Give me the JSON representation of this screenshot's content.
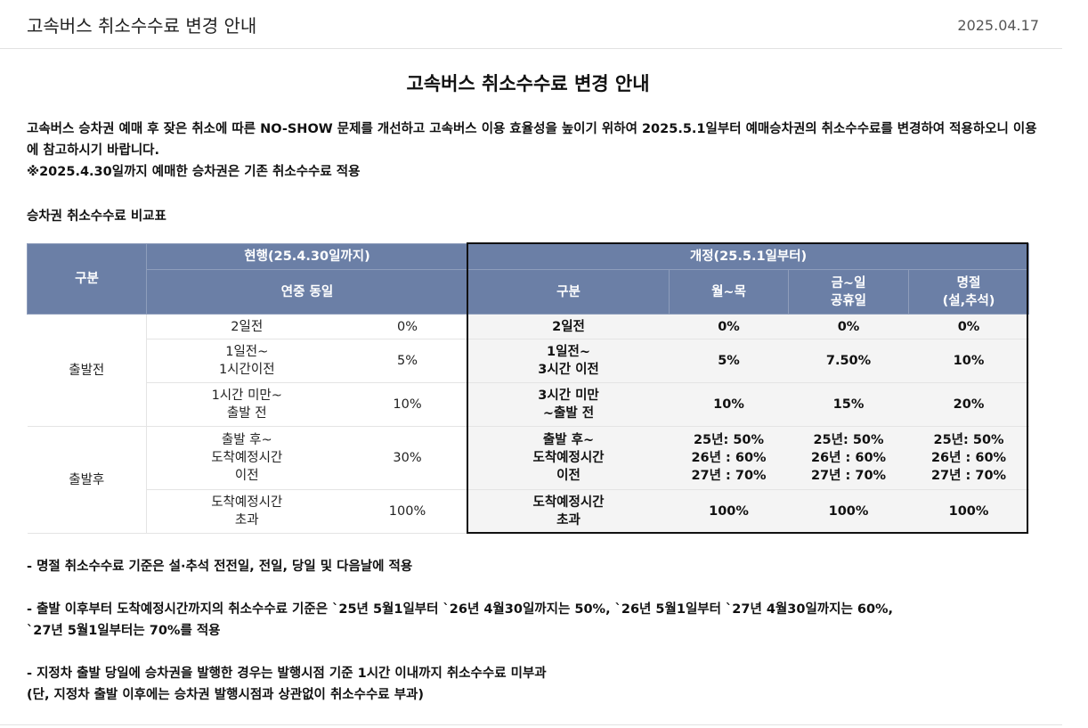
{
  "header": {
    "title": "고속버스 취소수수료 변경 안내",
    "date": "2025.04.17"
  },
  "main_title": "고속버스 취소수수료 변경 안내",
  "intro": {
    "line1": "고속버스 승차권 예매 후 잦은 취소에 따른 NO-SHOW 문제를 개선하고 고속버스 이용 효율성을 높이기 위하여 2025.5.1일부터 예매승차권의 취소수수료를 변경하여 적용하오니 이용에 참고하시기 바랍니다.",
    "line2": "※2025.4.30일까지 예매한 승차권은 기존 취소수수료 적용"
  },
  "table_title": "승차권 취소수수료 비교표",
  "table": {
    "h_division": "구분",
    "h_current": "현행(25.4.30일까지)",
    "h_revised": "개정(25.5.1일부터)",
    "h_current_sub": "연중 동일",
    "h_rev_division": "구분",
    "h_weekday": "월~목",
    "h_weekend": "금~일\n공휴일",
    "h_holiday": "명절\n(설,추석)",
    "before_label": "출발전",
    "after_label": "출발후",
    "rows": [
      {
        "cur_label": "2일전",
        "cur_rate": "0%",
        "new_label": "2일전",
        "weekday": "0%",
        "weekend": "0%",
        "holiday": "0%"
      },
      {
        "cur_label": "1일전~\n1시간이전",
        "cur_rate": "5%",
        "new_label": "1일전~\n3시간 이전",
        "weekday": "5%",
        "weekend": "7.50%",
        "holiday": "10%"
      },
      {
        "cur_label": "1시간 미만~\n출발 전",
        "cur_rate": "10%",
        "new_label": "3시간 미만\n~출발 전",
        "weekday": "10%",
        "weekend": "15%",
        "holiday": "20%"
      },
      {
        "cur_label": "출발 후~\n도착예정시간\n이전",
        "cur_rate": "30%",
        "new_label": "출발 후~\n도착예정시간\n이전",
        "weekday": "25년: 50%\n26년 : 60%\n27년 : 70%",
        "weekend": "25년: 50%\n26년 : 60%\n27년 : 70%",
        "holiday": "25년: 50%\n26년 : 60%\n27년 : 70%"
      },
      {
        "cur_label": "도착예정시간\n초과",
        "cur_rate": "100%",
        "new_label": "도착예정시간\n초과",
        "weekday": "100%",
        "weekend": "100%",
        "holiday": "100%"
      }
    ]
  },
  "notes": {
    "n1": "- 명절 취소수수료 기준은 설·추석 전전일, 전일, 당일 및 다음날에 적용",
    "n2": "- 출발 이후부터 도착예정시간까지의 취소수수료 기준은 `25년 5월1일부터 `26년 4월30일까지는 50%, `26년 5월1일부터 `27년 4월30일까지는 60%,\n`27년 5월1일부터는 70%를 적용",
    "n3": "- 지정차 출발 당일에 승차권을 발행한 경우는 발행시점 기준 1시간 이내까지 취소수수료 미부과\n(단, 지정차 출발 이후에는 승차권 발행시점과 상관없이 취소수수료 부과)"
  }
}
